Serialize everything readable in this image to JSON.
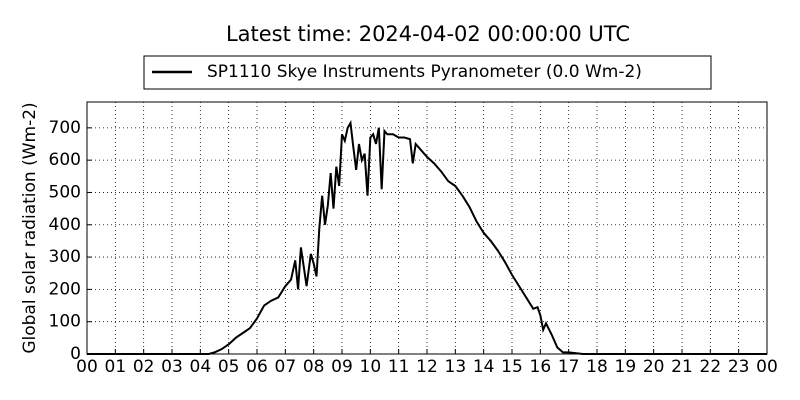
{
  "chart_data": {
    "type": "line",
    "title": "Latest time: 2024-04-02 00:00:00 UTC",
    "y_label": "Global solar radiation (Wm-2)",
    "legend": "upper center",
    "grid": true,
    "xlim": [
      0,
      24
    ],
    "ylim": [
      0,
      780
    ],
    "xticks": [
      {
        "value": 0,
        "label": "00"
      },
      {
        "value": 1,
        "label": "01"
      },
      {
        "value": 2,
        "label": "02"
      },
      {
        "value": 3,
        "label": "03"
      },
      {
        "value": 4,
        "label": "04"
      },
      {
        "value": 5,
        "label": "05"
      },
      {
        "value": 6,
        "label": "06"
      },
      {
        "value": 7,
        "label": "07"
      },
      {
        "value": 8,
        "label": "08"
      },
      {
        "value": 9,
        "label": "09"
      },
      {
        "value": 10,
        "label": "10"
      },
      {
        "value": 11,
        "label": "11"
      },
      {
        "value": 12,
        "label": "12"
      },
      {
        "value": 13,
        "label": "13"
      },
      {
        "value": 14,
        "label": "14"
      },
      {
        "value": 15,
        "label": "15"
      },
      {
        "value": 16,
        "label": "16"
      },
      {
        "value": 17,
        "label": "17"
      },
      {
        "value": 18,
        "label": "18"
      },
      {
        "value": 19,
        "label": "19"
      },
      {
        "value": 20,
        "label": "20"
      },
      {
        "value": 21,
        "label": "21"
      },
      {
        "value": 22,
        "label": "22"
      },
      {
        "value": 23,
        "label": "23"
      },
      {
        "value": 24,
        "label": "00"
      }
    ],
    "yticks": [
      0,
      100,
      200,
      300,
      400,
      500,
      600,
      700
    ],
    "x": [
      0,
      4,
      4.3,
      4.5,
      4.75,
      5,
      5.25,
      5.5,
      5.75,
      6,
      6.25,
      6.5,
      6.75,
      7,
      7.2,
      7.35,
      7.45,
      7.55,
      7.65,
      7.75,
      7.9,
      8,
      8.1,
      8.2,
      8.3,
      8.4,
      8.5,
      8.6,
      8.7,
      8.8,
      8.9,
      9,
      9.1,
      9.2,
      9.3,
      9.4,
      9.5,
      9.6,
      9.7,
      9.8,
      9.9,
      10,
      10.1,
      10.2,
      10.3,
      10.4,
      10.5,
      10.6,
      10.8,
      11,
      11.2,
      11.4,
      11.5,
      11.6,
      11.8,
      12,
      12.25,
      12.5,
      12.75,
      13,
      13.25,
      13.5,
      13.75,
      14,
      14.25,
      14.5,
      14.75,
      15,
      15.25,
      15.5,
      15.75,
      15.9,
      16,
      16.1,
      16.2,
      16.4,
      16.6,
      16.8,
      17,
      17.5,
      24
    ],
    "series": [
      {
        "name": "SP1110 Skye Instruments Pyranometer (0.0 Wm-2)",
        "color": "#000000",
        "values": [
          0,
          0,
          0,
          5,
          15,
          30,
          50,
          65,
          80,
          110,
          150,
          165,
          175,
          210,
          230,
          290,
          200,
          330,
          270,
          210,
          310,
          280,
          240,
          390,
          490,
          400,
          460,
          560,
          450,
          580,
          520,
          680,
          660,
          700,
          715,
          640,
          570,
          650,
          600,
          620,
          490,
          670,
          680,
          650,
          700,
          510,
          690,
          680,
          680,
          670,
          670,
          665,
          590,
          650,
          630,
          610,
          590,
          565,
          535,
          520,
          490,
          455,
          410,
          375,
          350,
          320,
          285,
          245,
          210,
          175,
          140,
          145,
          120,
          75,
          95,
          60,
          20,
          5,
          5,
          0,
          0
        ]
      }
    ]
  }
}
